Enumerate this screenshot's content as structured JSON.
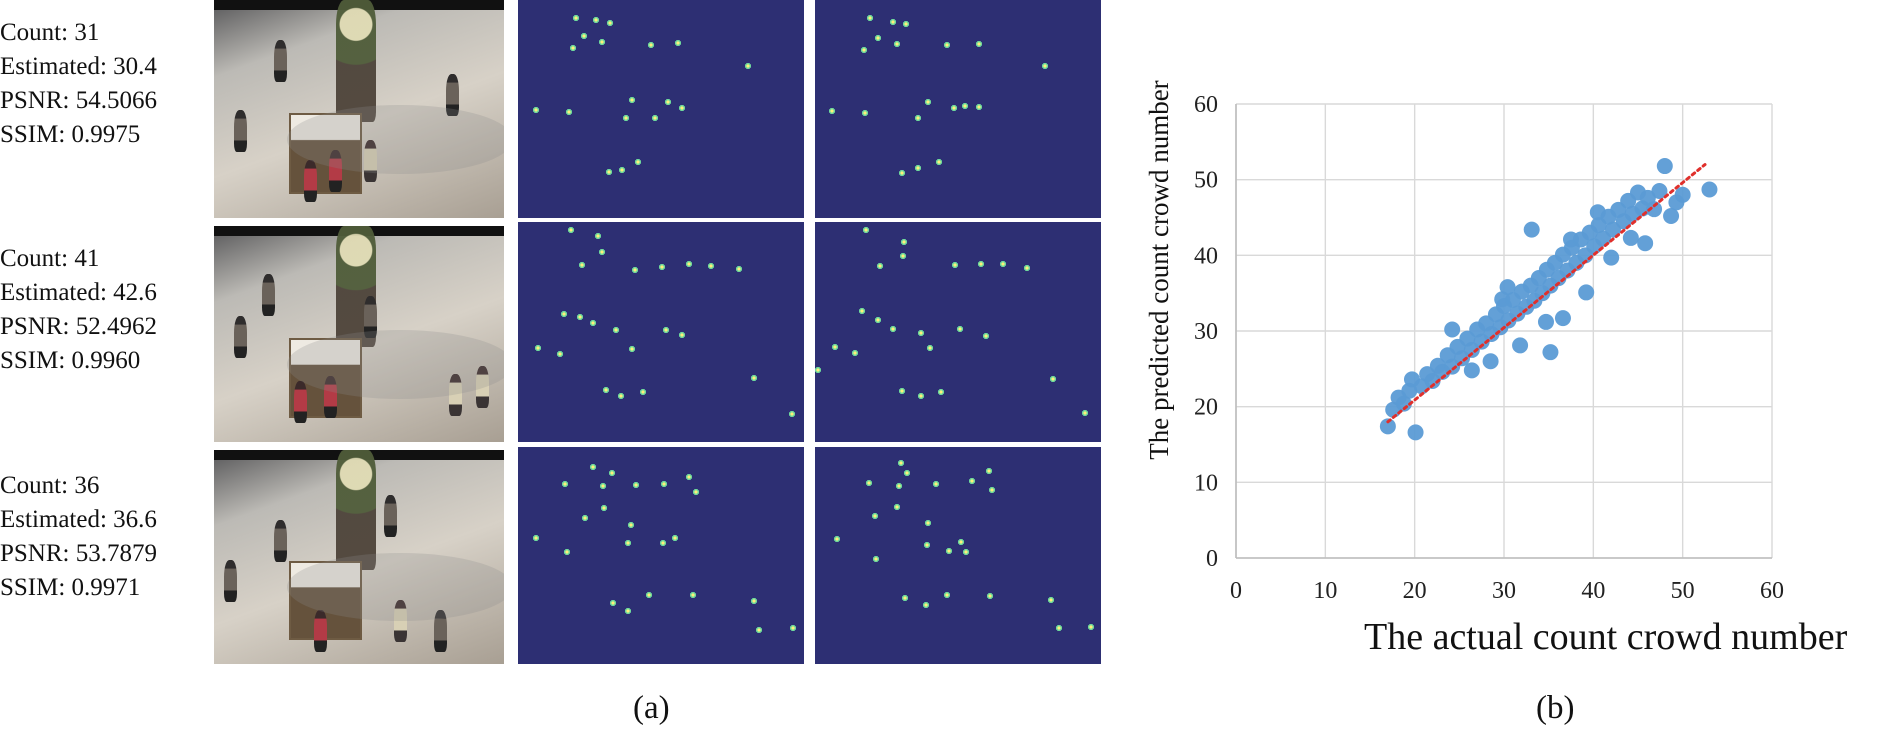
{
  "panels": {
    "left": {
      "rows": [
        {
          "count": "Count: 31",
          "estimated": "Estimated: 30.4",
          "psnr": "PSNR: 54.5066",
          "ssim": "SSIM: 0.9975"
        },
        {
          "count": "Count: 41",
          "estimated": "Estimated: 42.6",
          "psnr": "PSNR: 52.4962",
          "ssim": "SSIM: 0.9960"
        },
        {
          "count": "Count: 36",
          "estimated": "Estimated: 36.6",
          "psnr": "PSNR: 53.7879",
          "ssim": "SSIM: 0.9971"
        }
      ],
      "caption": "(a)"
    },
    "right": {
      "caption": "(b)"
    }
  },
  "chart_data": {
    "type": "scatter",
    "xlabel": "The actual count crowd number",
    "ylabel": "The predicted count crowd number",
    "xlim": [
      0,
      60
    ],
    "ylim": [
      0,
      60
    ],
    "x_ticks": [
      "0",
      "10",
      "20",
      "30",
      "40",
      "50",
      "60"
    ],
    "y_ticks": [
      "0",
      "10",
      "20",
      "30",
      "40",
      "50",
      "60"
    ],
    "grid": true,
    "legend": "none",
    "colors": {
      "points": "#5b9bd5",
      "trend": "#e0302c",
      "grid": "#d9d9d9",
      "axis": "#bdbdbd"
    },
    "series": [
      {
        "values": [
          [
            17,
            17.4
          ],
          [
            17.6,
            19.6
          ],
          [
            18.2,
            21.2
          ],
          [
            18.8,
            20.4
          ],
          [
            19.4,
            22.1
          ],
          [
            19.7,
            23.6
          ],
          [
            20.1,
            16.6
          ],
          [
            20.8,
            22.7
          ],
          [
            21.4,
            24.3
          ],
          [
            22.0,
            23.4
          ],
          [
            22.6,
            25.4
          ],
          [
            23.1,
            24.6
          ],
          [
            23.7,
            26.8
          ],
          [
            24.2,
            25.3
          ],
          [
            24.8,
            27.9
          ],
          [
            25.3,
            26.4
          ],
          [
            25.9,
            29.0
          ],
          [
            26.4,
            27.5
          ],
          [
            27.0,
            30.2
          ],
          [
            27.5,
            28.6
          ],
          [
            28.0,
            31.0
          ],
          [
            28.6,
            29.6
          ],
          [
            29.1,
            32.2
          ],
          [
            29.6,
            30.5
          ],
          [
            30.0,
            33.3
          ],
          [
            30.5,
            31.4
          ],
          [
            31.0,
            34.1
          ],
          [
            31.5,
            32.3
          ],
          [
            32.0,
            35.2
          ],
          [
            32.5,
            33.2
          ],
          [
            33.0,
            36.0
          ],
          [
            33.4,
            34.0
          ],
          [
            33.9,
            37.0
          ],
          [
            34.3,
            35.0
          ],
          [
            34.8,
            38.1
          ],
          [
            35.2,
            36.0
          ],
          [
            35.7,
            39.0
          ],
          [
            36.1,
            37.0
          ],
          [
            36.6,
            40.1
          ],
          [
            37.1,
            38.0
          ],
          [
            37.6,
            41.0
          ],
          [
            38.1,
            39.0
          ],
          [
            38.6,
            42.1
          ],
          [
            39.1,
            40.0
          ],
          [
            39.6,
            43.0
          ],
          [
            40.1,
            41.2
          ],
          [
            40.6,
            44.0
          ],
          [
            41.1,
            42.2
          ],
          [
            41.7,
            45.1
          ],
          [
            42.2,
            43.4
          ],
          [
            42.8,
            46.0
          ],
          [
            43.4,
            44.5
          ],
          [
            43.9,
            47.2
          ],
          [
            44.4,
            45.5
          ],
          [
            45.0,
            48.3
          ],
          [
            45.5,
            46.2
          ],
          [
            46.1,
            47.6
          ],
          [
            46.8,
            46.1
          ],
          [
            47.4,
            48.5
          ],
          [
            48.0,
            51.8
          ],
          [
            48.7,
            45.2
          ],
          [
            49.3,
            47.0
          ],
          [
            50.0,
            48.0
          ],
          [
            53.0,
            48.7
          ],
          [
            35.2,
            27.2
          ],
          [
            33.1,
            43.4
          ],
          [
            30.4,
            35.8
          ],
          [
            36.6,
            31.7
          ],
          [
            26.4,
            24.8
          ],
          [
            24.2,
            30.2
          ],
          [
            28.5,
            26.0
          ],
          [
            39.2,
            35.1
          ],
          [
            42.0,
            39.7
          ],
          [
            44.2,
            42.3
          ],
          [
            34.7,
            31.2
          ],
          [
            31.8,
            28.1
          ],
          [
            29.8,
            34.2
          ],
          [
            37.5,
            42.1
          ],
          [
            40.5,
            45.7
          ],
          [
            45.8,
            41.6
          ]
        ]
      }
    ],
    "trendline": {
      "from": [
        17,
        18
      ],
      "to": [
        52.5,
        52
      ]
    }
  }
}
